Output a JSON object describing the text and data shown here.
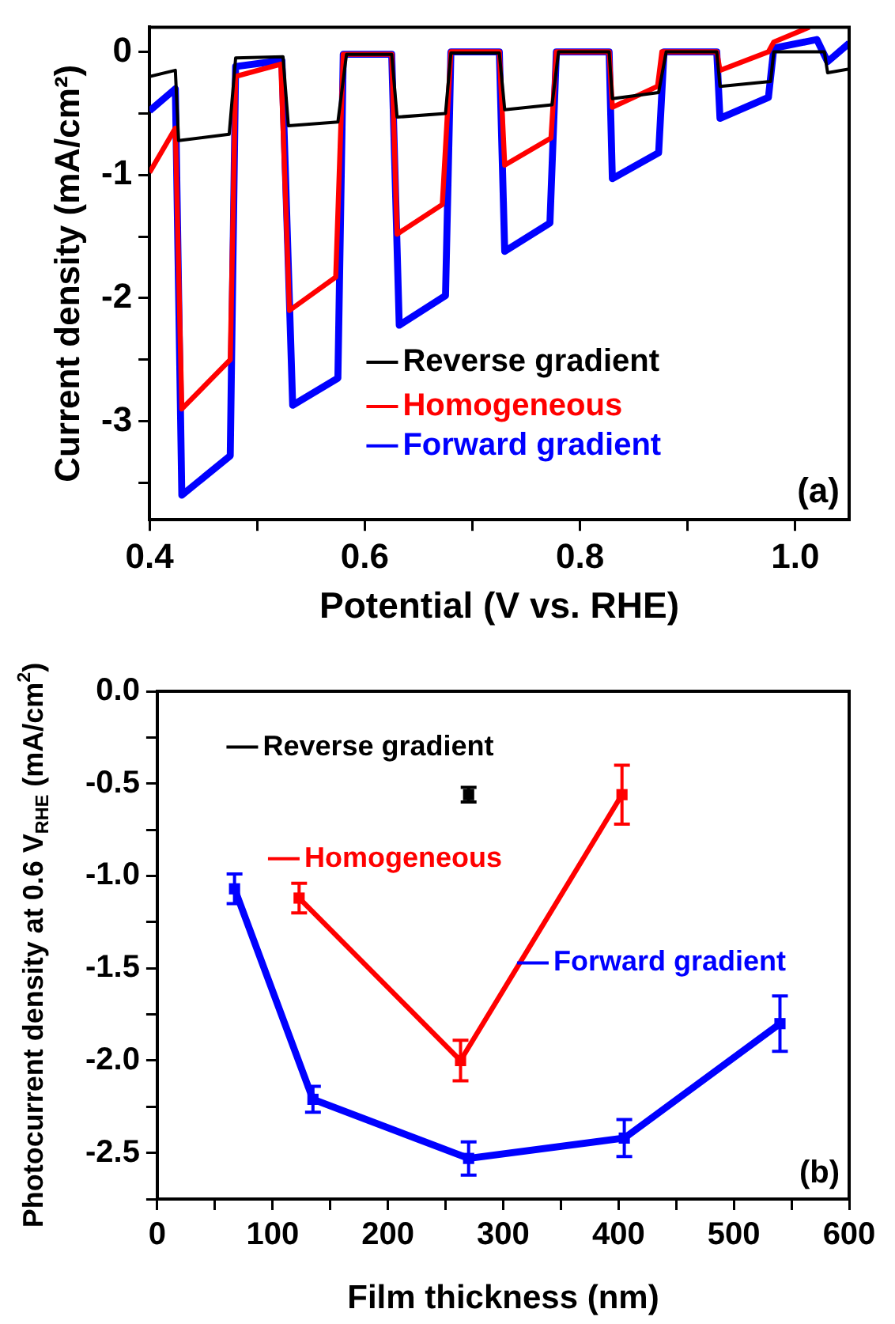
{
  "chart_data": [
    {
      "type": "line",
      "xlabel": "Potential (V vs. RHE)",
      "ylabel": "Current density (mA/cm²)",
      "xlim": [
        0.4,
        1.05
      ],
      "ylim": [
        -3.8,
        0.2
      ],
      "xticks": [
        0.4,
        {
          "value": 0.5,
          "label": null
        },
        0.6,
        {
          "value": 0.7,
          "label": null
        },
        0.8,
        {
          "value": 0.9,
          "label": null
        },
        {
          "value": 1,
          "label": "1.0"
        }
      ],
      "yticks": [
        {
          "value": -3.5,
          "label": null
        },
        -3,
        {
          "value": -2.5,
          "label": null
        },
        -2,
        {
          "value": -1.5,
          "label": null
        },
        -1,
        {
          "value": -0.5,
          "label": null
        },
        0
      ],
      "grid": false,
      "legend": "bottom",
      "marker": "none",
      "annotations": [
        "(a)"
      ],
      "series": [
        {
          "name": "Reverse gradient",
          "color": "#000000",
          "x": [
            0.4,
            0.424,
            0.427,
            0.474,
            0.48,
            0.524,
            0.529,
            0.575,
            0.583,
            0.625,
            0.63,
            0.675,
            0.68,
            0.725,
            0.73,
            0.774,
            0.78,
            0.827,
            0.83,
            0.873,
            0.88,
            0.927,
            0.93,
            0.977,
            0.98,
            1.027,
            1.03,
            1.05
          ],
          "values": [
            -0.2,
            -0.15,
            -0.72,
            -0.67,
            -0.05,
            -0.04,
            -0.6,
            -0.57,
            -0.02,
            -0.02,
            -0.53,
            -0.5,
            -0.01,
            -0.01,
            -0.47,
            -0.43,
            0,
            0,
            -0.38,
            -0.33,
            0,
            0,
            -0.28,
            -0.24,
            0,
            0,
            -0.17,
            -0.14
          ]
        },
        {
          "name": "Homogeneous",
          "color": "#ff0000",
          "x": [
            0.4,
            0.424,
            0.43,
            0.475,
            0.48,
            0.522,
            0.53,
            0.573,
            0.58,
            0.625,
            0.63,
            0.672,
            0.68,
            0.725,
            0.73,
            0.773,
            0.778,
            0.827,
            0.83,
            0.872,
            0.876,
            0.927,
            0.93,
            0.975,
            0.98,
            1.013
          ],
          "values": [
            -0.98,
            -0.62,
            -2.9,
            -2.5,
            -0.2,
            -0.1,
            -2.1,
            -1.83,
            -0.02,
            -0.02,
            -1.48,
            -1.24,
            0,
            0,
            -0.92,
            -0.7,
            0,
            0,
            -0.45,
            -0.28,
            0,
            0,
            -0.15,
            0,
            0.08,
            0.2
          ]
        },
        {
          "name": "Forward gradient",
          "color": "#0000ff",
          "x": [
            0.4,
            0.424,
            0.43,
            0.475,
            0.48,
            0.523,
            0.533,
            0.575,
            0.58,
            0.625,
            0.632,
            0.675,
            0.68,
            0.725,
            0.73,
            0.772,
            0.778,
            0.827,
            0.83,
            0.873,
            0.878,
            0.927,
            0.93,
            0.975,
            0.98,
            1.02,
            1.03,
            1.05
          ],
          "values": [
            -0.48,
            -0.3,
            -3.6,
            -3.28,
            -0.12,
            -0.07,
            -2.87,
            -2.65,
            -0.02,
            -0.02,
            -2.22,
            -1.98,
            0,
            0,
            -1.62,
            -1.39,
            0,
            0,
            -1.03,
            -0.82,
            0,
            0,
            -0.54,
            -0.37,
            0.03,
            0.1,
            -0.08,
            0.07
          ]
        }
      ]
    },
    {
      "type": "line",
      "xlabel": "Film thickness (nm)",
      "ylabel": "Photocurrent density at 0.6 V$_{RHE}$ (mA/cm$^{2}$)",
      "xlim": [
        0,
        600
      ],
      "ylim": [
        -2.75,
        0
      ],
      "xticks": [
        0,
        {
          "value": 50,
          "label": null
        },
        100,
        {
          "value": 150,
          "label": null
        },
        200,
        {
          "value": 250,
          "label": null
        },
        300,
        {
          "value": 350,
          "label": null
        },
        400,
        {
          "value": 450,
          "label": null
        },
        500,
        {
          "value": 550,
          "label": null
        },
        600
      ],
      "yticks": [
        {
          "value": -2.75,
          "label": null
        },
        -2.5,
        {
          "value": -2.25,
          "label": null
        },
        {
          "value": -2,
          "label": "-2.0"
        },
        {
          "value": -1.75,
          "label": null
        },
        -1.5,
        {
          "value": -1.25,
          "label": null
        },
        {
          "value": -1,
          "label": "-1.0"
        },
        {
          "value": -0.75,
          "label": null
        },
        -0.5,
        {
          "value": -0.25,
          "label": null
        },
        {
          "value": 0,
          "label": "0.0"
        }
      ],
      "grid": false,
      "legend": "top left",
      "marker": "square",
      "annotations": [
        "(b)"
      ],
      "series": [
        {
          "name": "Reverse gradient",
          "color": "#000000",
          "x": [
            270
          ],
          "values": [
            -0.56
          ],
          "errors": [
            0.04
          ]
        },
        {
          "name": "Homogeneous",
          "color": "#ff0000",
          "x": [
            123,
            263,
            403
          ],
          "values": [
            -1.12,
            -2.0,
            -0.56
          ],
          "errors": [
            0.08,
            0.11,
            0.16
          ]
        },
        {
          "name": "Forward gradient",
          "color": "#0000ff",
          "x": [
            67,
            135,
            270,
            405,
            540
          ],
          "values": [
            -1.07,
            -2.21,
            -2.53,
            -2.42,
            -1.8
          ],
          "errors": [
            0.08,
            0.07,
            0.09,
            0.1,
            0.15
          ]
        }
      ]
    }
  ]
}
